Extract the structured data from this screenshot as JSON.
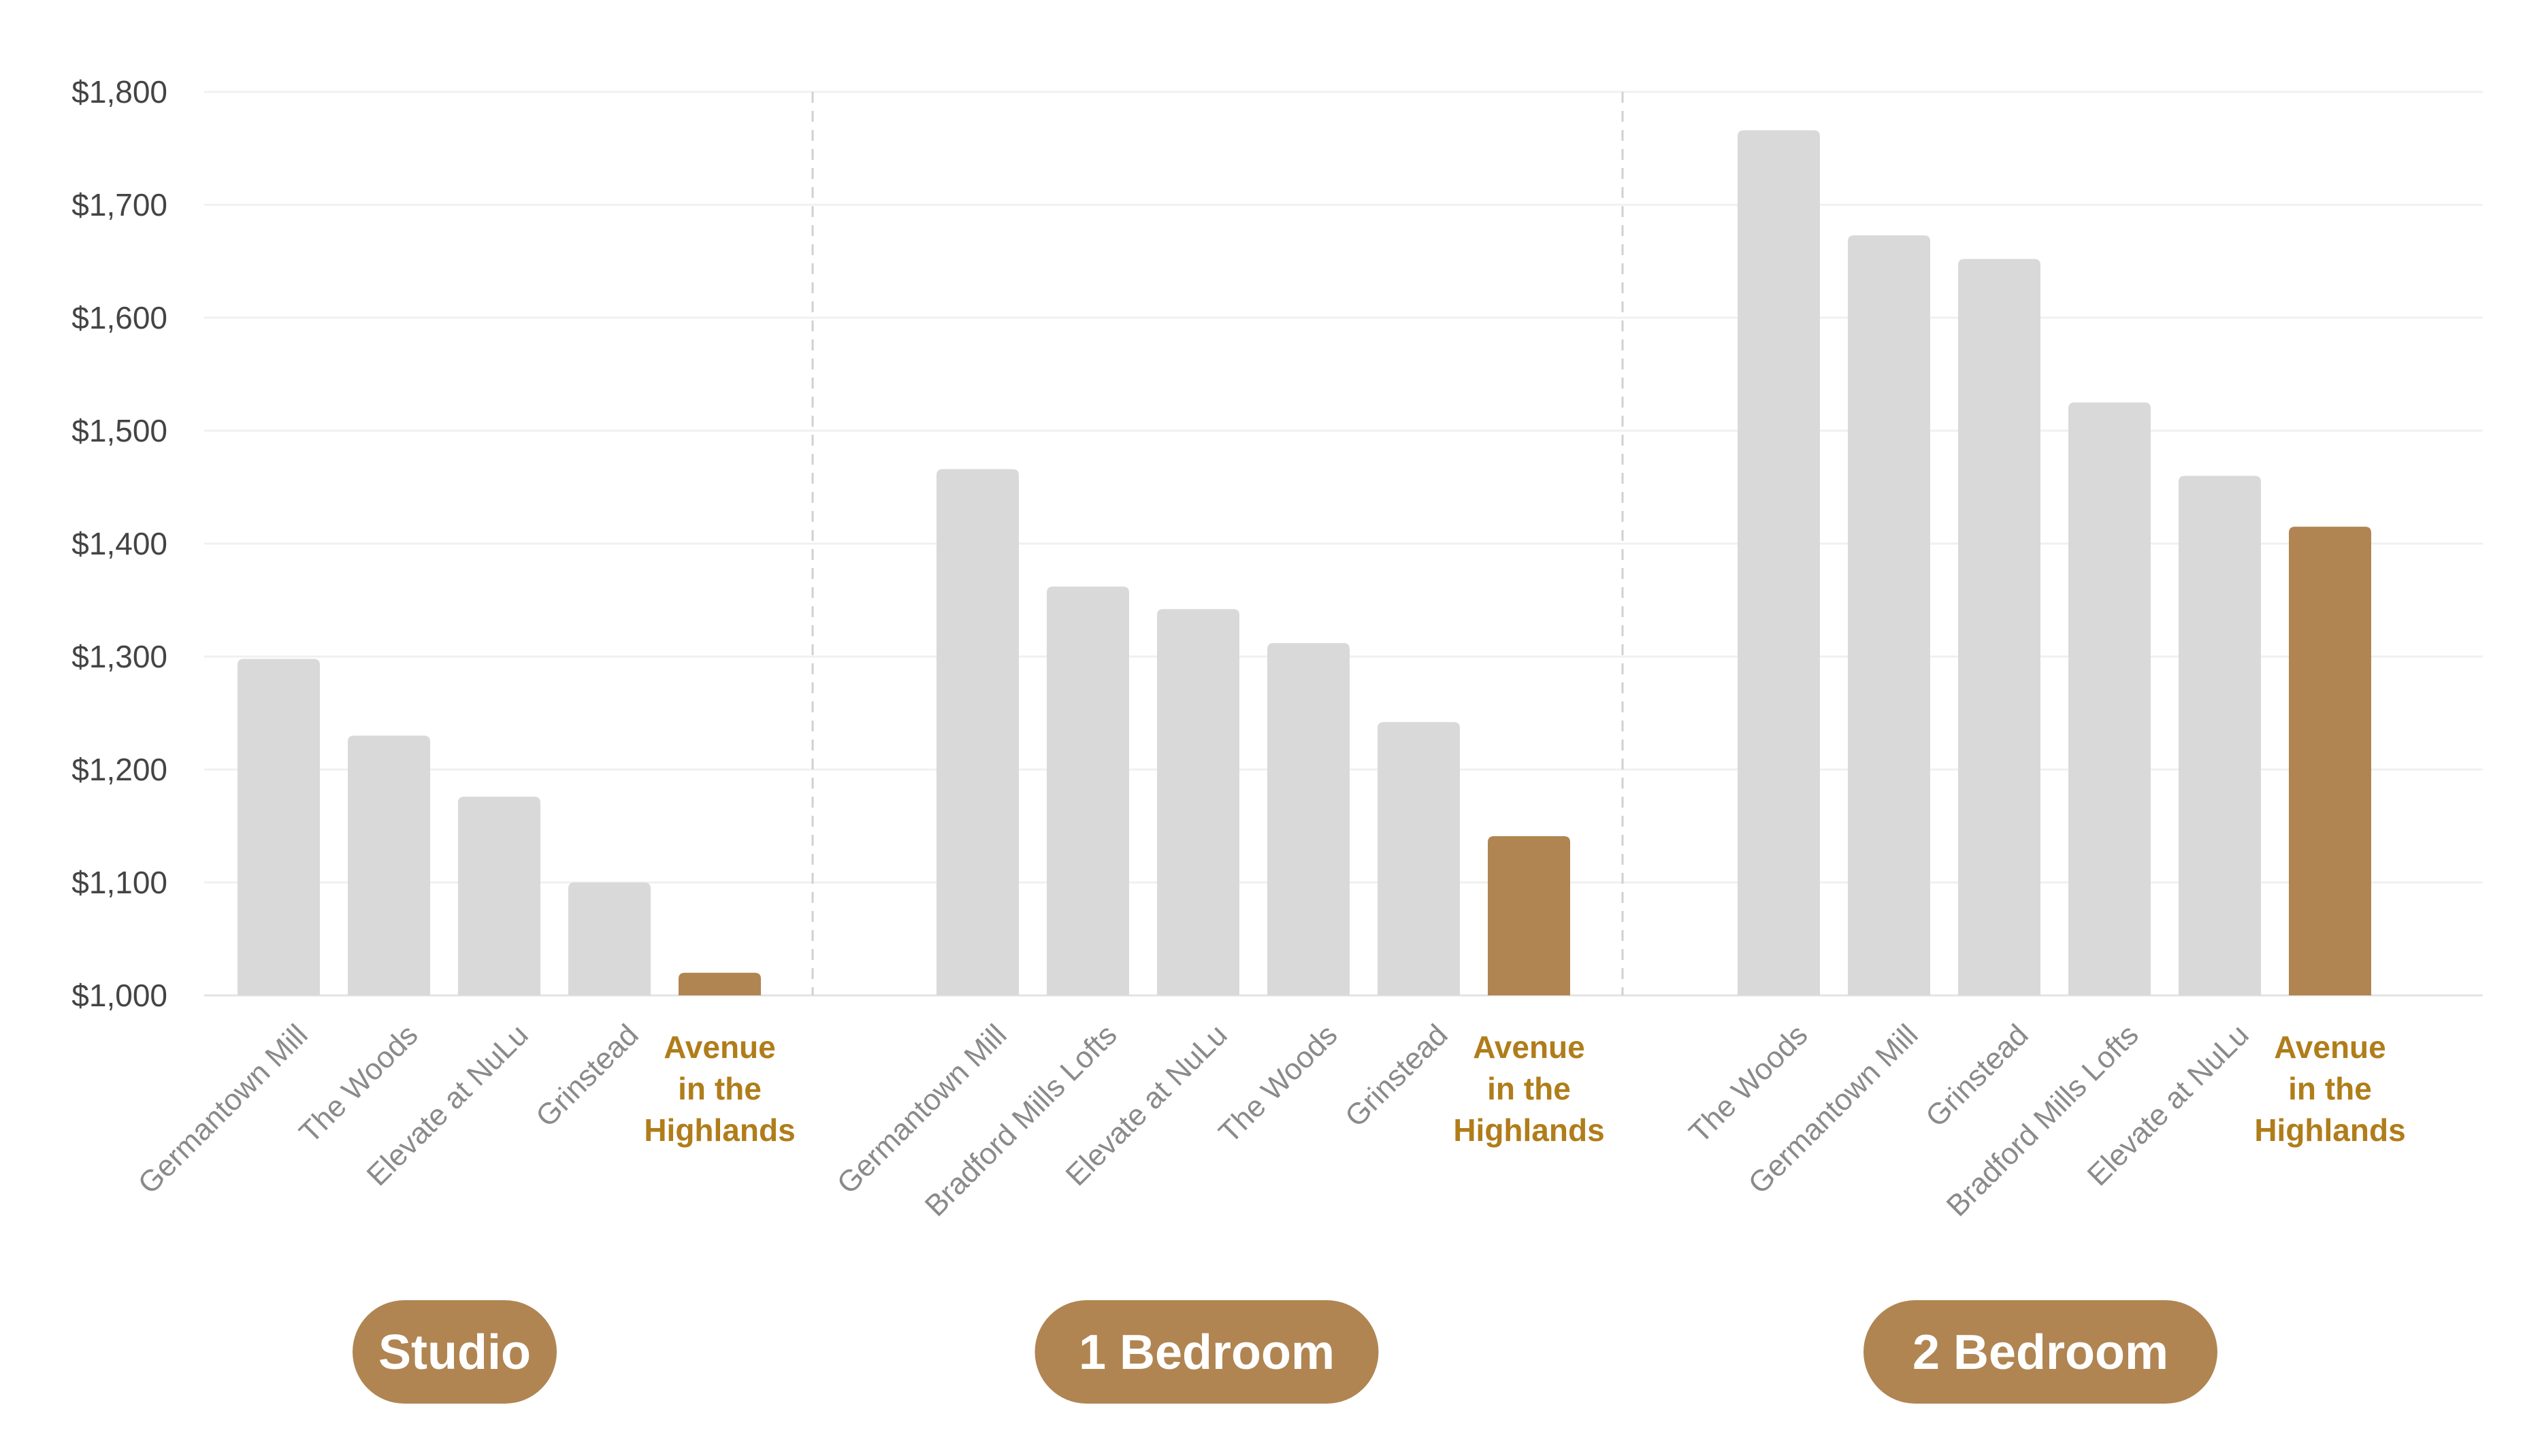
{
  "chart_data": {
    "type": "bar",
    "title": "",
    "xlabel": "",
    "ylabel": "",
    "ylim": [
      1000,
      1800
    ],
    "y_ticks": [
      "$1,000",
      "$1,100",
      "$1,200",
      "$1,300",
      "$1,400",
      "$1,500",
      "$1,600",
      "$1,700",
      "$1,800"
    ],
    "grid": true,
    "colors": {
      "base": "#d9d9d9",
      "highlight": "#b08552",
      "highlight_text": "#b07d1a",
      "pill": "#b08552"
    },
    "groups": [
      {
        "name": "Studio",
        "categories": [
          "Germantown Mill",
          "The Woods",
          "Elevate at NuLu",
          "Grinstead",
          "Avenue in the Highlands"
        ],
        "values": [
          1298,
          1230,
          1176,
          1100,
          1020
        ],
        "highlight_index": 4
      },
      {
        "name": "1 Bedroom",
        "categories": [
          "Germantown Mill",
          "Bradford Mills Lofts",
          "Elevate at NuLu",
          "The Woods",
          "Grinstead",
          "Avenue in the Highlands"
        ],
        "values": [
          1466,
          1362,
          1342,
          1312,
          1242,
          1141
        ],
        "highlight_index": 5
      },
      {
        "name": "2 Bedroom",
        "categories": [
          "The Woods",
          "Germantown Mill",
          "Grinstead",
          "Bradford Mills Lofts",
          "Elevate at NuLu",
          "Avenue in the Highlands"
        ],
        "values": [
          1766,
          1673,
          1652,
          1525,
          1460,
          1415
        ],
        "highlight_index": 5
      }
    ],
    "highlight_label_lines": [
      "Avenue",
      "in the",
      "Highlands"
    ]
  }
}
